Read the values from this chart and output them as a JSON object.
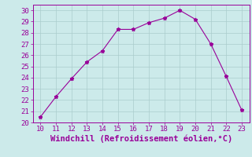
{
  "x": [
    10,
    11,
    12,
    13,
    14,
    15,
    16,
    17,
    18,
    19,
    20,
    21,
    22,
    23
  ],
  "y": [
    20.5,
    22.3,
    23.9,
    25.4,
    26.4,
    28.3,
    28.3,
    28.9,
    29.3,
    30.0,
    29.2,
    27.0,
    24.1,
    21.1
  ],
  "xlim": [
    9.5,
    23.5
  ],
  "ylim": [
    20,
    30.5
  ],
  "xticks": [
    10,
    11,
    12,
    13,
    14,
    15,
    16,
    17,
    18,
    19,
    20,
    21,
    22,
    23
  ],
  "yticks": [
    20,
    21,
    22,
    23,
    24,
    25,
    26,
    27,
    28,
    29,
    30
  ],
  "xlabel": "Windchill (Refroidissement éolien,°C)",
  "line_color": "#990099",
  "marker": "*",
  "bg_color": "#cceaea",
  "grid_color": "#aacccc",
  "tick_label_fontsize": 6.5,
  "xlabel_fontsize": 7.5
}
